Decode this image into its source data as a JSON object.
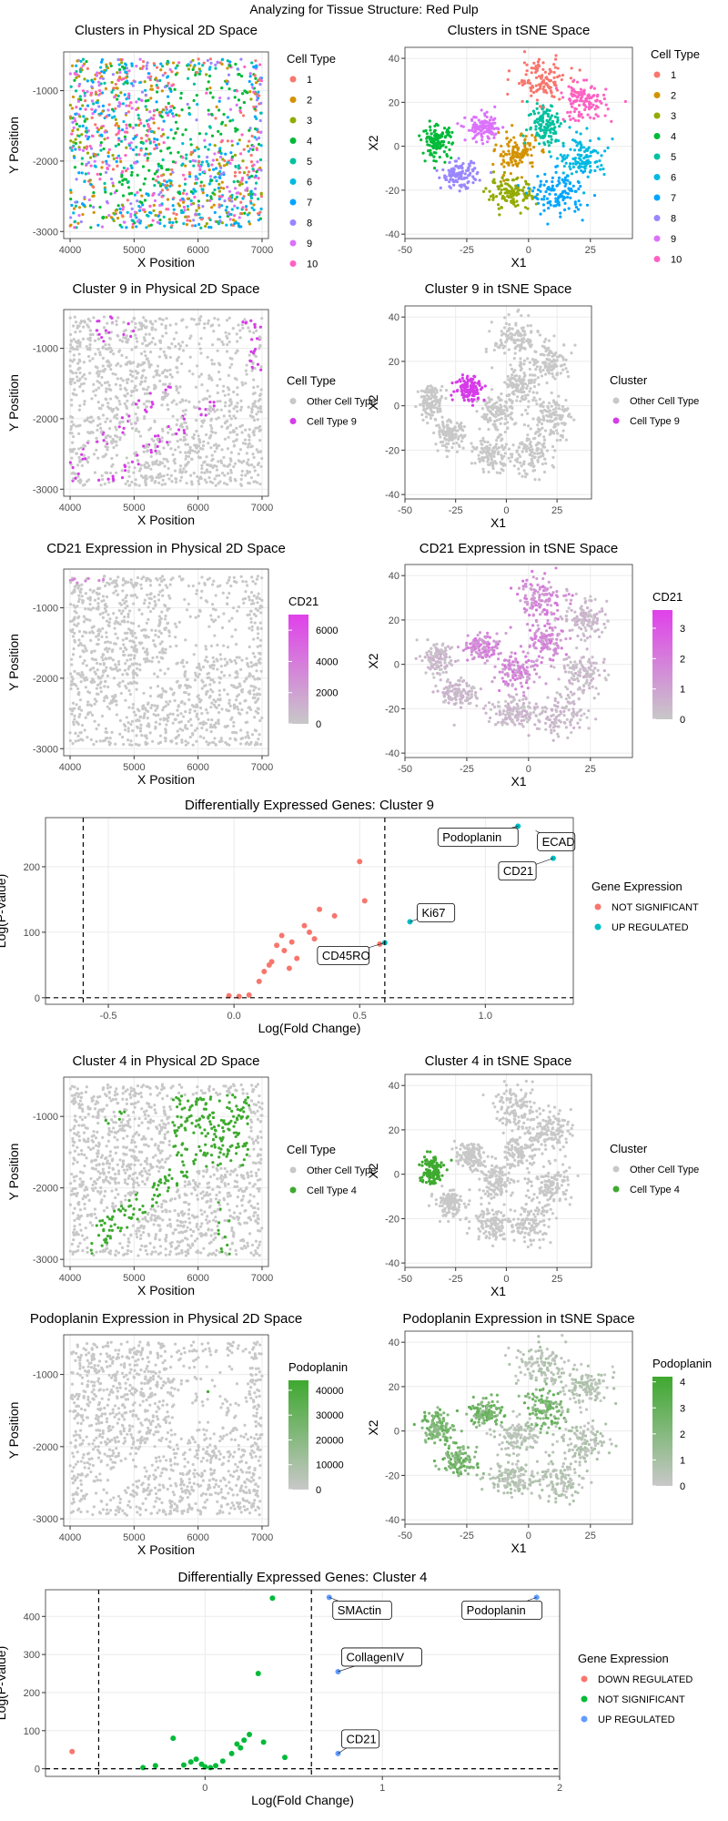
{
  "page_title": "Analyzing for Tissue Structure: Red Pulp",
  "colors": {
    "c1": "#F8766D",
    "c2": "#D39200",
    "c3": "#93AA00",
    "c4": "#00BA38",
    "c5": "#00C19F",
    "c6": "#00B9E3",
    "c7": "#00A5FF",
    "c8": "#9A86FF",
    "c9": "#DB72FB",
    "c10": "#FF61C3",
    "grey": "#C8C8C8",
    "highlight9": "#D63CE8",
    "highlight4": "#3EAA2F",
    "cd21_high": "#E040EA",
    "podo_high": "#3EA82F",
    "de_red": "#F8766D",
    "de_teal": "#00BFC4",
    "de_green": "#00BA38",
    "de_blue": "#619CFF"
  },
  "chart_data": [
    {
      "id": "p1",
      "type": "scatter",
      "title": "Clusters in Physical 2D Space",
      "xlabel": "X Position",
      "ylabel": "Y Position",
      "xlim": [
        3900,
        7100
      ],
      "ylim": [
        -3100,
        -450
      ],
      "xticks": [
        4000,
        5000,
        6000,
        7000
      ],
      "yticks": [
        -1000,
        -2000,
        -3000
      ],
      "legend": {
        "title": "Cell Type",
        "labels": [
          "1",
          "2",
          "3",
          "4",
          "5",
          "6",
          "7",
          "8",
          "9",
          "10"
        ]
      },
      "point_mode": "physical_clusters"
    },
    {
      "id": "p2",
      "type": "scatter",
      "title": "Clusters in tSNE Space",
      "xlabel": "X1",
      "ylabel": "X2",
      "xlim": [
        -50,
        42
      ],
      "ylim": [
        -42,
        45
      ],
      "xticks": [
        -50,
        -25,
        0,
        25
      ],
      "yticks": [
        40,
        20,
        0,
        -20,
        -40
      ],
      "legend": {
        "title": "Cell Type",
        "labels": [
          "1",
          "2",
          "3",
          "4",
          "5",
          "6",
          "7",
          "8",
          "9",
          "10"
        ]
      },
      "point_mode": "tsne_clusters"
    },
    {
      "id": "p3",
      "type": "scatter",
      "title": "Cluster 9 in Physical 2D Space",
      "xlabel": "X Position",
      "ylabel": "Y Position",
      "xlim": [
        3900,
        7100
      ],
      "ylim": [
        -3100,
        -450
      ],
      "xticks": [
        4000,
        5000,
        6000,
        7000
      ],
      "yticks": [
        -1000,
        -2000,
        -3000
      ],
      "legend": {
        "title": "Cell Type",
        "labels": [
          "Other Cell Type",
          "Cell Type 9"
        ]
      },
      "point_mode": "physical_highlight_9"
    },
    {
      "id": "p4",
      "type": "scatter",
      "title": "Cluster 9 in tSNE Space",
      "xlabel": "X1",
      "ylabel": "X2",
      "xlim": [
        -50,
        42
      ],
      "ylim": [
        -42,
        45
      ],
      "xticks": [
        -50,
        -25,
        0,
        25
      ],
      "yticks": [
        40,
        20,
        0,
        -20,
        -40
      ],
      "legend": {
        "title": "Cluster",
        "labels": [
          "Other Cell Type",
          "Cell Type 9"
        ]
      },
      "point_mode": "tsne_highlight_9"
    },
    {
      "id": "p5",
      "type": "scatter",
      "title": "CD21 Expression in Physical 2D Space",
      "xlabel": "X Position",
      "ylabel": "Y Position",
      "xlim": [
        3900,
        7100
      ],
      "ylim": [
        -3100,
        -450
      ],
      "xticks": [
        4000,
        5000,
        6000,
        7000
      ],
      "yticks": [
        -1000,
        -2000,
        -3000
      ],
      "colorbar": {
        "title": "CD21",
        "ticks": [
          "0",
          "2000",
          "4000",
          "6000"
        ],
        "range": [
          0,
          7000
        ]
      },
      "point_mode": "physical_cd21"
    },
    {
      "id": "p6",
      "type": "scatter",
      "title": "CD21 Expression in tSNE Space",
      "xlabel": "X1",
      "ylabel": "X2",
      "xlim": [
        -50,
        42
      ],
      "ylim": [
        -42,
        45
      ],
      "xticks": [
        -50,
        -25,
        0,
        25
      ],
      "yticks": [
        40,
        20,
        0,
        -20,
        -40
      ],
      "colorbar": {
        "title": "CD21",
        "ticks": [
          "0",
          "1",
          "2",
          "3"
        ],
        "range": [
          0,
          3.6
        ]
      },
      "point_mode": "tsne_cd21"
    },
    {
      "id": "p7",
      "type": "scatter",
      "title": "Differentially Expressed Genes: Cluster 9",
      "xlabel": "Log(Fold Change)",
      "ylabel": "Log(P-Value)",
      "xlim": [
        -0.75,
        1.35
      ],
      "ylim": [
        -10,
        275
      ],
      "xticks": [
        -0.5,
        0.0,
        0.5,
        1.0
      ],
      "xticklabels": [
        "-0.5",
        "0.0",
        "0.5",
        "1.0"
      ],
      "yticks": [
        0,
        100,
        200
      ],
      "vlines": [
        -0.6,
        0.6
      ],
      "hlines": [
        0
      ],
      "legend": {
        "title": "Gene Expression",
        "labels": [
          "NOT SIGNIFICANT",
          "UP REGULATED"
        ]
      },
      "points": [
        {
          "x": -0.02,
          "y": 3,
          "g": 0
        },
        {
          "x": 0.02,
          "y": 2,
          "g": 0
        },
        {
          "x": 0.06,
          "y": 4,
          "g": 0
        },
        {
          "x": 0.1,
          "y": 25,
          "g": 0
        },
        {
          "x": 0.12,
          "y": 40,
          "g": 0
        },
        {
          "x": 0.14,
          "y": 50,
          "g": 0
        },
        {
          "x": 0.15,
          "y": 55,
          "g": 0
        },
        {
          "x": 0.17,
          "y": 80,
          "g": 0
        },
        {
          "x": 0.19,
          "y": 95,
          "g": 0
        },
        {
          "x": 0.2,
          "y": 72,
          "g": 0
        },
        {
          "x": 0.22,
          "y": 45,
          "g": 0
        },
        {
          "x": 0.23,
          "y": 85,
          "g": 0
        },
        {
          "x": 0.25,
          "y": 60,
          "g": 0
        },
        {
          "x": 0.28,
          "y": 110,
          "g": 0
        },
        {
          "x": 0.3,
          "y": 100,
          "g": 0
        },
        {
          "x": 0.32,
          "y": 90,
          "g": 0
        },
        {
          "x": 0.34,
          "y": 135,
          "g": 0
        },
        {
          "x": 0.36,
          "y": 65,
          "g": 0
        },
        {
          "x": 0.4,
          "y": 125,
          "g": 0
        },
        {
          "x": 0.45,
          "y": 75,
          "g": 0
        },
        {
          "x": 0.5,
          "y": 208,
          "g": 0
        },
        {
          "x": 0.52,
          "y": 148,
          "g": 0
        },
        {
          "x": 0.58,
          "y": 82,
          "g": 0
        },
        {
          "x": 0.6,
          "y": 84,
          "g": 1
        },
        {
          "x": 0.7,
          "y": 116,
          "g": 1
        },
        {
          "x": 1.1,
          "y": 240,
          "g": 1
        },
        {
          "x": 1.13,
          "y": 262,
          "g": 1
        },
        {
          "x": 1.27,
          "y": 213,
          "g": 1
        }
      ],
      "labels": [
        {
          "text": "Podoplanin",
          "x": 1.13,
          "y": 262,
          "dx": -88,
          "dy": 12
        },
        {
          "text": "ECAD",
          "x": 1.2,
          "y": 255,
          "dx": 2,
          "dy": 12
        },
        {
          "text": "CD21",
          "x": 1.27,
          "y": 213,
          "dx": -60,
          "dy": 14
        },
        {
          "text": "Ki67",
          "x": 0.7,
          "y": 116,
          "dx": 8,
          "dy": -10
        },
        {
          "text": "CD45RO",
          "x": 0.6,
          "y": 84,
          "dx": -74,
          "dy": 14
        }
      ]
    },
    {
      "id": "p8",
      "type": "scatter",
      "title": "Cluster 4 in Physical 2D Space",
      "xlabel": "X Position",
      "ylabel": "Y Position",
      "xlim": [
        3900,
        7100
      ],
      "ylim": [
        -3100,
        -450
      ],
      "xticks": [
        4000,
        5000,
        6000,
        7000
      ],
      "yticks": [
        -1000,
        -2000,
        -3000
      ],
      "legend": {
        "title": "Cell Type",
        "labels": [
          "Other Cell Type",
          "Cell Type 4"
        ]
      },
      "point_mode": "physical_highlight_4"
    },
    {
      "id": "p9",
      "type": "scatter",
      "title": "Cluster 4 in tSNE Space",
      "xlabel": "X1",
      "ylabel": "X2",
      "xlim": [
        -50,
        42
      ],
      "ylim": [
        -42,
        45
      ],
      "xticks": [
        -50,
        -25,
        0,
        25
      ],
      "yticks": [
        40,
        20,
        0,
        -20,
        -40
      ],
      "legend": {
        "title": "Cluster",
        "labels": [
          "Other Cell Type",
          "Cell Type 4"
        ]
      },
      "point_mode": "tsne_highlight_4"
    },
    {
      "id": "p10",
      "type": "scatter",
      "title": "Podoplanin Expression in Physical 2D Space",
      "xlabel": "X Position",
      "ylabel": "Y Position",
      "xlim": [
        3900,
        7100
      ],
      "ylim": [
        -3100,
        -450
      ],
      "xticks": [
        4000,
        5000,
        6000,
        7000
      ],
      "yticks": [
        -1000,
        -2000,
        -3000
      ],
      "colorbar": {
        "title": "Podoplanin",
        "ticks": [
          "0",
          "10000",
          "20000",
          "30000",
          "40000"
        ],
        "range": [
          0,
          44000
        ]
      },
      "point_mode": "physical_podo"
    },
    {
      "id": "p11",
      "type": "scatter",
      "title": "Podoplanin Expression in tSNE Space",
      "xlabel": "X1",
      "ylabel": "X2",
      "xlim": [
        -50,
        42
      ],
      "ylim": [
        -42,
        45
      ],
      "xticks": [
        -50,
        -25,
        0,
        25
      ],
      "yticks": [
        40,
        20,
        0,
        -20,
        -40
      ],
      "colorbar": {
        "title": "Podoplanin",
        "ticks": [
          "0",
          "1",
          "2",
          "3",
          "4"
        ],
        "range": [
          0,
          4.2
        ]
      },
      "point_mode": "tsne_podo"
    },
    {
      "id": "p12",
      "type": "scatter",
      "title": "Differentially Expressed Genes: Cluster 4",
      "xlabel": "Log(Fold Change)",
      "ylabel": "Log(P-Value)",
      "xlim": [
        -0.9,
        2.0
      ],
      "ylim": [
        -20,
        470
      ],
      "xticks": [
        0,
        1,
        2
      ],
      "xticklabels": [
        "0",
        "1",
        "2"
      ],
      "yticks": [
        0,
        100,
        200,
        300,
        400
      ],
      "vlines": [
        -0.6,
        0.6
      ],
      "hlines": [
        0
      ],
      "legend": {
        "title": "Gene Expression",
        "labels": [
          "DOWN REGULATED",
          "NOT SIGNIFICANT",
          "UP REGULATED"
        ]
      },
      "points": [
        {
          "x": -0.75,
          "y": 45,
          "g": 0
        },
        {
          "x": -0.35,
          "y": 3,
          "g": 1
        },
        {
          "x": -0.28,
          "y": 8,
          "g": 1
        },
        {
          "x": -0.18,
          "y": 80,
          "g": 1
        },
        {
          "x": -0.12,
          "y": 10,
          "g": 1
        },
        {
          "x": -0.08,
          "y": 18,
          "g": 1
        },
        {
          "x": -0.05,
          "y": 25,
          "g": 1
        },
        {
          "x": -0.02,
          "y": 12,
          "g": 1
        },
        {
          "x": 0.0,
          "y": 5,
          "g": 1
        },
        {
          "x": 0.03,
          "y": 3,
          "g": 1
        },
        {
          "x": 0.06,
          "y": 8,
          "g": 1
        },
        {
          "x": 0.1,
          "y": 20,
          "g": 1
        },
        {
          "x": 0.15,
          "y": 40,
          "g": 1
        },
        {
          "x": 0.18,
          "y": 65,
          "g": 1
        },
        {
          "x": 0.2,
          "y": 55,
          "g": 1
        },
        {
          "x": 0.22,
          "y": 75,
          "g": 1
        },
        {
          "x": 0.25,
          "y": 90,
          "g": 1
        },
        {
          "x": 0.3,
          "y": 250,
          "g": 1
        },
        {
          "x": 0.33,
          "y": 70,
          "g": 1
        },
        {
          "x": 0.38,
          "y": 448,
          "g": 1
        },
        {
          "x": 0.45,
          "y": 30,
          "g": 1
        },
        {
          "x": 0.7,
          "y": 450,
          "g": 2
        },
        {
          "x": 0.75,
          "y": 255,
          "g": 2
        },
        {
          "x": 0.75,
          "y": 40,
          "g": 2
        },
        {
          "x": 1.87,
          "y": 450,
          "g": 2
        }
      ],
      "labels": [
        {
          "text": "SMActin",
          "x": 0.7,
          "y": 450,
          "dx": 4,
          "dy": 14
        },
        {
          "text": "Podoplanin",
          "x": 1.87,
          "y": 450,
          "dx": -82,
          "dy": 14
        },
        {
          "text": "CollagenIV",
          "x": 0.75,
          "y": 255,
          "dx": 4,
          "dy": -16
        },
        {
          "text": "CD21",
          "x": 0.75,
          "y": 40,
          "dx": 4,
          "dy": -16
        }
      ]
    }
  ]
}
